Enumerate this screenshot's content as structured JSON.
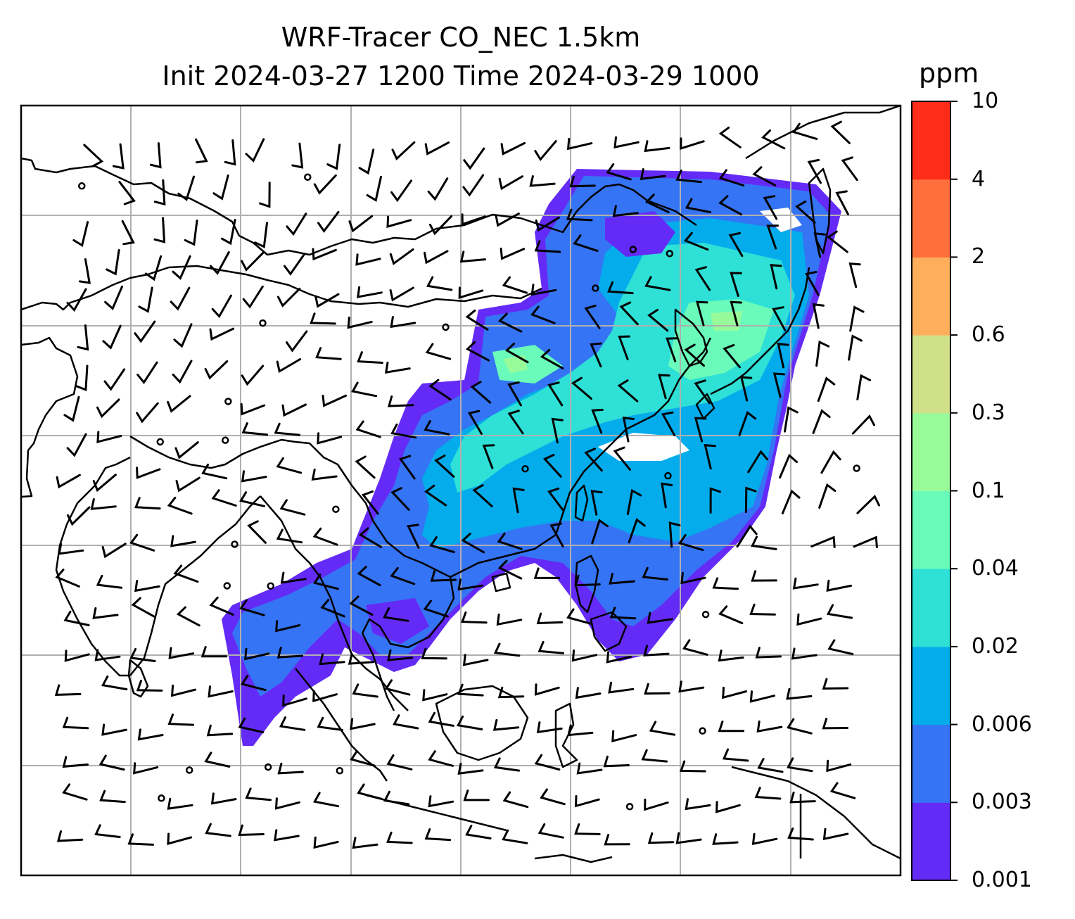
{
  "title": {
    "line1": "WRF-Tracer CO_NEC 1.5km",
    "line2": "Init 2024-03-27 1200 Time 2024-03-29 1000"
  },
  "colorbar": {
    "unit": "ppm",
    "levels": [
      "0.001",
      "0.003",
      "0.006",
      "0.02",
      "0.04",
      "0.1",
      "0.3",
      "0.6",
      "2",
      "4",
      "10"
    ],
    "colors": [
      "#652bf6",
      "#3574f4",
      "#04acec",
      "#2ee0d6",
      "#6afbba",
      "#98fb99",
      "#d0e089",
      "#ffaf5c",
      "#ff6f3b",
      "#ff2c19"
    ]
  },
  "map": {
    "field": "CO_NEC tracer concentration",
    "overlay": "wind barbs",
    "gridlines": true,
    "background": "#ffffff",
    "line_color": "#000000",
    "grid_color": "#b0b0b0"
  }
}
